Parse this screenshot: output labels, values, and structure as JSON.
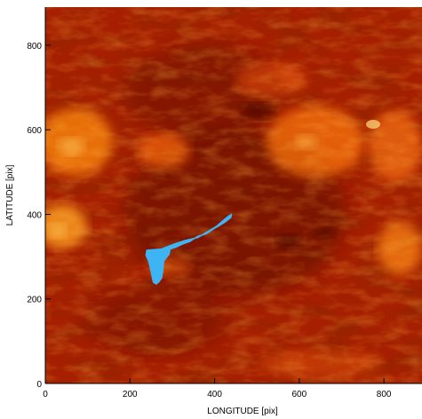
{
  "chart_data": {
    "type": "heatmap",
    "title": "",
    "xlabel": "LONGITUDE [pix]",
    "ylabel": "LATITUDE [pix]",
    "xlim": [
      0,
      890
    ],
    "ylim": [
      0,
      890
    ],
    "xticks": [
      0,
      200,
      400,
      600,
      800
    ],
    "yticks": [
      0,
      200,
      400,
      600,
      800
    ],
    "colormap": "red-temperature",
    "colors": {
      "background": "#a51f00",
      "dark": "#5e0b00",
      "mid": "#c23400",
      "bright": "#ff8a10",
      "highlight": "#ffd060",
      "region": "#3eb4f4"
    },
    "highlighted_region": {
      "label": "",
      "color": "#3eb4f4",
      "outline": [
        [
          240,
          315
        ],
        [
          275,
          318
        ],
        [
          305,
          330
        ],
        [
          330,
          338
        ],
        [
          360,
          345
        ],
        [
          385,
          360
        ],
        [
          405,
          372
        ],
        [
          420,
          385
        ],
        [
          432,
          395
        ],
        [
          440,
          400
        ],
        [
          438,
          392
        ],
        [
          425,
          382
        ],
        [
          412,
          374
        ],
        [
          398,
          366
        ],
        [
          380,
          354
        ],
        [
          360,
          348
        ],
        [
          342,
          336
        ],
        [
          325,
          330
        ],
        [
          310,
          323
        ],
        [
          295,
          318
        ],
        [
          292,
          305
        ],
        [
          280,
          290
        ],
        [
          278,
          270
        ],
        [
          275,
          250
        ],
        [
          268,
          240
        ],
        [
          262,
          235
        ],
        [
          255,
          240
        ],
        [
          252,
          255
        ],
        [
          248,
          275
        ],
        [
          244,
          290
        ],
        [
          238,
          303
        ]
      ]
    }
  }
}
